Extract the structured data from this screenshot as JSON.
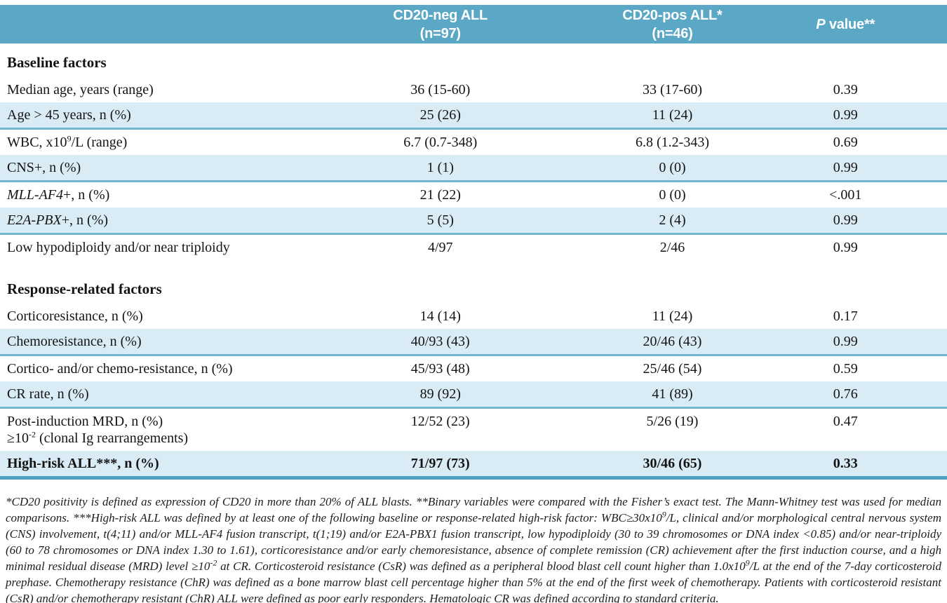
{
  "colors": {
    "header_bg": "#5ba7c6",
    "header_text": "#ffffff",
    "stripe_bg": "#d9ecf6",
    "stripe_border": "#74b6d0",
    "end_border": "#4f9fc0",
    "text_color": "#141414",
    "footnote_color": "#1d1d1d"
  },
  "table": {
    "columns": [
      {
        "line1": "",
        "line2": ""
      },
      {
        "line1": "CD20-neg ALL",
        "line2": "(n=97)"
      },
      {
        "line1": "CD20-pos ALL*",
        "line2": "(n=46)"
      },
      {
        "italic": "P",
        "rest": " value**"
      }
    ],
    "sections": [
      {
        "title": "Baseline factors",
        "rows": [
          {
            "label": [
              {
                "s": "Median age, years (range)"
              }
            ],
            "neg": "36 (15-60)",
            "pos": "33 (17-60)",
            "p": "0.39",
            "striped": false
          },
          {
            "label": [
              {
                "s": "Age > 45 years, n (%)"
              }
            ],
            "neg": "25 (26)",
            "pos": "11 (24)",
            "p": "0.99",
            "striped": true
          },
          {
            "label": [
              {
                "s": "WBC, x10"
              },
              {
                "sup": "9"
              },
              {
                "s": "/L (range)"
              }
            ],
            "neg": "6.7 (0.7-348)",
            "pos": "6.8 (1.2-343)",
            "p": "0.69",
            "striped": false
          },
          {
            "label": [
              {
                "s": "CNS+, n (%)"
              }
            ],
            "neg": "1 (1)",
            "pos": "0 (0)",
            "p": "0.99",
            "striped": true
          },
          {
            "label": [
              {
                "em": "MLL-AF4"
              },
              {
                "s": "+, n (%)"
              }
            ],
            "neg": "21 (22)",
            "pos": "0 (0)",
            "p": "<.001",
            "striped": false
          },
          {
            "label": [
              {
                "em": "E2A-PBX"
              },
              {
                "s": "+, n (%)"
              }
            ],
            "neg": "5 (5)",
            "pos": "2 (4)",
            "p": "0.99",
            "striped": true
          },
          {
            "label": [
              {
                "s": "Low hypodiploidy and/or near triploidy"
              }
            ],
            "neg": "4/97",
            "pos": "2/46",
            "p": "0.99",
            "striped": false
          }
        ]
      },
      {
        "title": "Response-related factors",
        "rows": [
          {
            "label": [
              {
                "s": "Corticoresistance, n (%)"
              }
            ],
            "neg": "14 (14)",
            "pos": "11 (24)",
            "p": "0.17",
            "striped": false
          },
          {
            "label": [
              {
                "s": "Chemoresistance, n (%)"
              }
            ],
            "neg": "40/93 (43)",
            "pos": "20/46 (43)",
            "p": "0.99",
            "striped": true
          },
          {
            "label": [
              {
                "s": "Cortico- and/or chemo-resistance, n (%)"
              }
            ],
            "neg": "45/93 (48)",
            "pos": "25/46 (54)",
            "p": "0.59",
            "striped": false
          },
          {
            "label": [
              {
                "s": "CR rate, n (%)"
              }
            ],
            "neg": "89 (92)",
            "pos": "41 (89)",
            "p": "0.76",
            "striped": true
          },
          {
            "label": [
              {
                "s": "Post-induction MRD, n (%)"
              }
            ],
            "label2": [
              {
                "s": "≥10"
              },
              {
                "sup": "-2"
              },
              {
                "s": " (clonal Ig rearrangements)"
              }
            ],
            "neg": "12/52 (23)",
            "pos": "5/26 (19)",
            "p": "0.47",
            "striped": false
          },
          {
            "label": [
              {
                "s": "High-risk ALL***, n (%)"
              }
            ],
            "neg": "71/97 (73)",
            "pos": "30/46 (65)",
            "p": "0.33",
            "striped": true,
            "bold": true,
            "table_end": true
          }
        ]
      }
    ]
  },
  "footnote": {
    "segments": [
      {
        "s": "*CD20 positivity is defined as expression of CD20 in more than 20% of ALL blasts. **Binary variables were compared with the Fisher’s exact test. The Mann-Whitney test was used for median comparisons. ***High-risk ALL was defined by at least one of the following baseline or response-related high-risk factor: WBC≥30x10"
      },
      {
        "sup": "9"
      },
      {
        "s": "/L, clinical and/or morphological central nervous system (CNS) involvement, t(4;11) and/or MLL-AF4 fusion transcript, t(1;19) and/or E2A-PBX1 fusion transcript, low hypodiploidy (30 to 39 chromosomes or DNA index <0.85) and/or near-triploidy (60 to 78 chromosomes or DNA index 1.30 to 1.61), corticoresistance and/or early chemoresistance, absence of complete remission (CR) achievement after the first induction course, and a high minimal residual disease (MRD) level ≥10"
      },
      {
        "sup": "-2"
      },
      {
        "s": " at CR. Corticosteroid resistance (CsR) was defined as a peripheral blood blast cell count higher than 1.0x10"
      },
      {
        "sup": "9"
      },
      {
        "s": "/L at the end of the 7-day corticosteroid prephase. Chemotherapy resistance (ChR) was defined as a bone marrow blast cell percentage higher than 5% at the end of the first week of chemotherapy. Patients with corticosteroid resistant (CsR) and/or chemotherapy resistant (ChR) ALL were defined as poor early responders. Hematologic CR was defined according to standard criteria."
      }
    ]
  }
}
